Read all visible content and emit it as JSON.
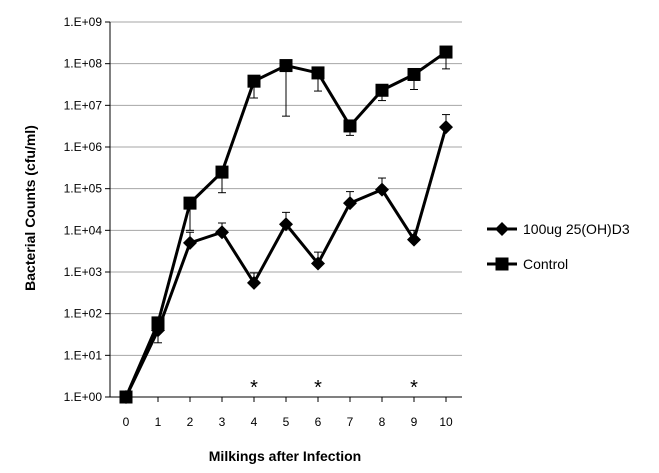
{
  "chart_data": {
    "type": "line",
    "title": "",
    "xlabel": "Milkings after Infection",
    "ylabel": "Bacterial Counts (cfu/ml)",
    "yscale": "log",
    "ylim": [
      1,
      1000000000
    ],
    "x": [
      0,
      1,
      2,
      3,
      4,
      5,
      6,
      7,
      8,
      9,
      10
    ],
    "x_tick_labels": [
      "0",
      "1",
      "2",
      "3",
      "4",
      "5",
      "6",
      "7",
      "8",
      "9",
      "10"
    ],
    "y_tick_labels": [
      "1.E+00",
      "1.E+01",
      "1.E+02",
      "1.E+03",
      "1.E+04",
      "1.E+05",
      "1.E+06",
      "1.E+07",
      "1.E+08",
      "1.E+09"
    ],
    "grid": true,
    "legend_position": "right",
    "series": [
      {
        "name": "100ug 25(OH)D3",
        "marker": "diamond",
        "values": [
          1,
          40,
          5000,
          9000,
          550,
          14000,
          1600,
          45000,
          95000,
          6000,
          3000000
        ],
        "error_upper": [
          null,
          70,
          9000,
          15000,
          950,
          27000,
          3000,
          85000,
          180000,
          10000,
          6000000
        ],
        "error_lower": [
          null,
          20,
          null,
          null,
          null,
          null,
          null,
          null,
          null,
          null,
          null
        ]
      },
      {
        "name": "Control",
        "marker": "square",
        "values": [
          1,
          60,
          45000,
          250000,
          38000000,
          90000000,
          60000000,
          3200000,
          23000000,
          55000000,
          190000000
        ],
        "error_upper": [
          null,
          null,
          null,
          null,
          null,
          null,
          null,
          null,
          null,
          null,
          null
        ],
        "error_lower": [
          null,
          null,
          10000,
          80000,
          15000000,
          5500000,
          22000000,
          1900000,
          13000000,
          24000000,
          75000000
        ]
      }
    ],
    "annotations": [
      {
        "x": 4,
        "text": "*"
      },
      {
        "x": 6,
        "text": "*"
      },
      {
        "x": 9,
        "text": "*"
      }
    ]
  }
}
